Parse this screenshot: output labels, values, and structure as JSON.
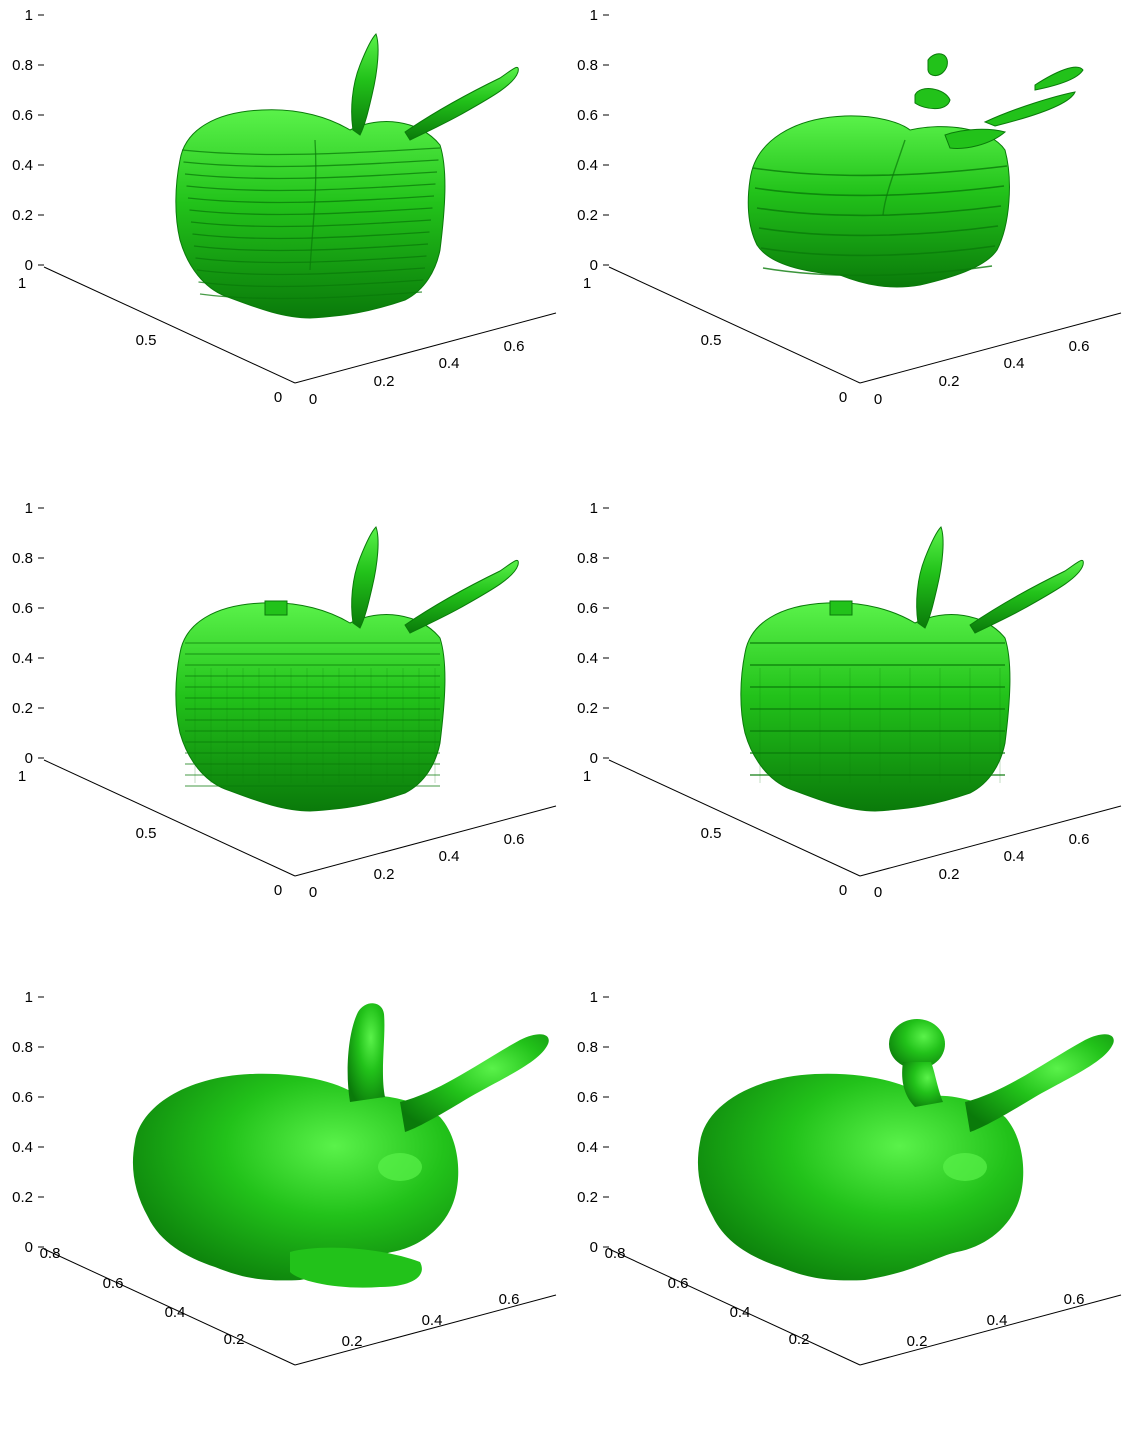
{
  "colors": {
    "background": "#ffffff",
    "surface_light": "#5af24a",
    "surface_mid": "#22c21a",
    "surface_dark": "#0a7a0a",
    "axis": "#000000"
  },
  "panels": [
    {
      "name": "panel-stacked-slices-fine",
      "shape": "sliced",
      "z_ticks": [
        "0",
        "0.2",
        "0.4",
        "0.6",
        "0.8",
        "1"
      ],
      "left_ticks": [
        "1",
        "0.5",
        "0"
      ],
      "right_ticks": [
        "0",
        "0.2",
        "0.4",
        "0.6"
      ]
    },
    {
      "name": "panel-stacked-slices-coarse",
      "shape": "sliced-coarse",
      "z_ticks": [
        "0",
        "0.2",
        "0.4",
        "0.6",
        "0.8",
        "1"
      ],
      "left_ticks": [
        "1",
        "0.5",
        "0"
      ],
      "right_ticks": [
        "0",
        "0.2",
        "0.4",
        "0.6"
      ]
    },
    {
      "name": "panel-voxel-fine",
      "shape": "voxel",
      "z_ticks": [
        "0",
        "0.2",
        "0.4",
        "0.6",
        "0.8",
        "1"
      ],
      "left_ticks": [
        "1",
        "0.5",
        "0"
      ],
      "right_ticks": [
        "0",
        "0.2",
        "0.4",
        "0.6"
      ]
    },
    {
      "name": "panel-voxel-coarse",
      "shape": "voxel-coarse",
      "z_ticks": [
        "0",
        "0.2",
        "0.4",
        "0.6",
        "0.8",
        "1"
      ],
      "left_ticks": [
        "1",
        "0.5",
        "0"
      ],
      "right_ticks": [
        "0",
        "0.2",
        "0.4",
        "0.6"
      ]
    },
    {
      "name": "panel-smooth-bunny",
      "shape": "smooth",
      "z_ticks": [
        "0",
        "0.2",
        "0.4",
        "0.6",
        "0.8",
        "1"
      ],
      "left_ticks": [
        "0.8",
        "0.6",
        "0.4",
        "0.2"
      ],
      "right_ticks": [
        "0.2",
        "0.4",
        "0.6"
      ]
    },
    {
      "name": "panel-smooth-bunny-blobby",
      "shape": "smooth-blob",
      "z_ticks": [
        "0",
        "0.2",
        "0.4",
        "0.6",
        "0.8",
        "1"
      ],
      "left_ticks": [
        "0.8",
        "0.6",
        "0.4",
        "0.2"
      ],
      "right_ticks": [
        "0.2",
        "0.4",
        "0.6"
      ]
    }
  ]
}
